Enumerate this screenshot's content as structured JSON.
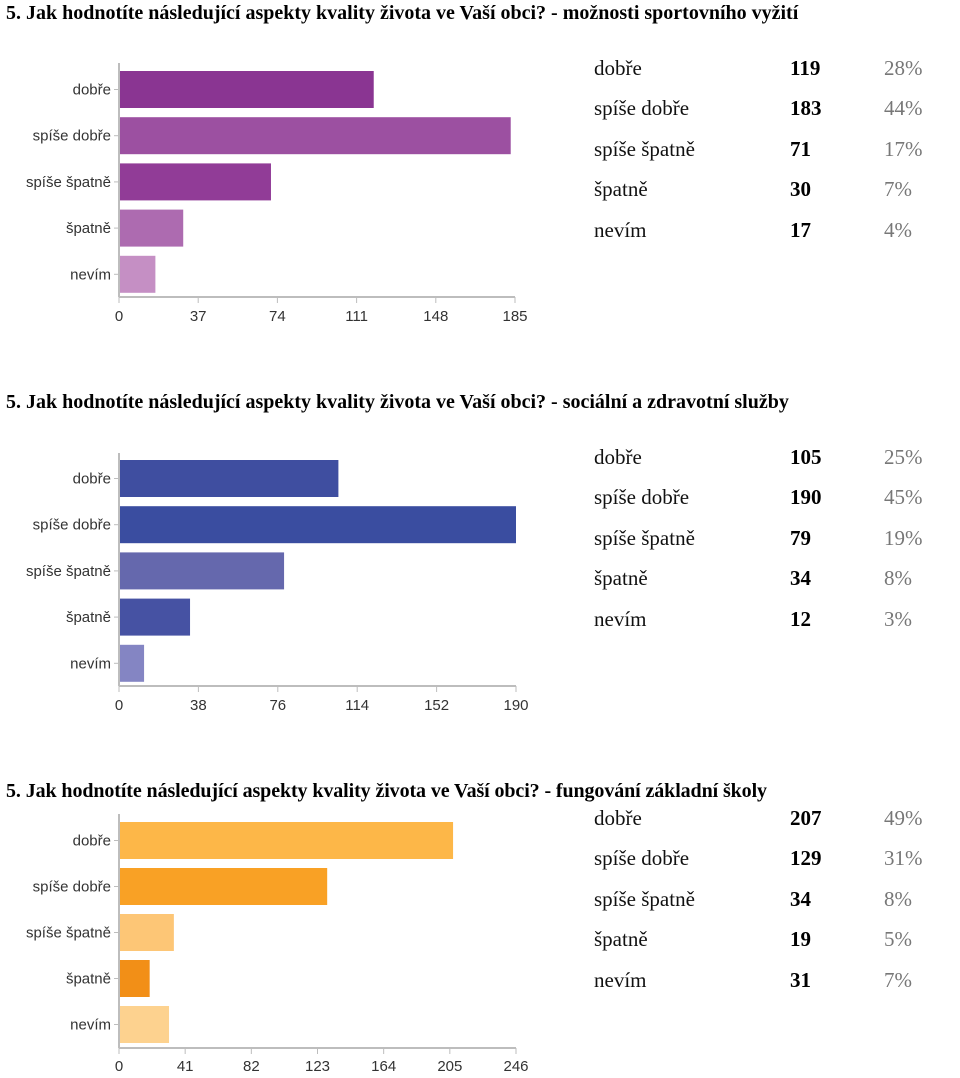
{
  "sections": [
    {
      "title": "5. Jak hodnotíte následující aspekty kvality života ve Vaší obci? - možnosti sportovního vyžití",
      "rows": [
        {
          "label": "dobře",
          "count": "119",
          "pct": "28%"
        },
        {
          "label": "spíše dobře",
          "count": "183",
          "pct": "44%"
        },
        {
          "label": "spíše špatně",
          "count": "71",
          "pct": "17%"
        },
        {
          "label": "špatně",
          "count": "30",
          "pct": "7%"
        },
        {
          "label": "nevím",
          "count": "17",
          "pct": "4%"
        }
      ]
    },
    {
      "title": "5. Jak hodnotíte následující aspekty kvality života ve Vaší obci? - sociální a zdravotní služby",
      "rows": [
        {
          "label": "dobře",
          "count": "105",
          "pct": "25%"
        },
        {
          "label": "spíše dobře",
          "count": "190",
          "pct": "45%"
        },
        {
          "label": "spíše špatně",
          "count": "79",
          "pct": "19%"
        },
        {
          "label": "špatně",
          "count": "34",
          "pct": "8%"
        },
        {
          "label": "nevím",
          "count": "12",
          "pct": "3%"
        }
      ]
    },
    {
      "title": "5. Jak hodnotíte následující aspekty kvality života ve Vaší obci? - fungování základní školy",
      "rows": [
        {
          "label": "dobře",
          "count": "207",
          "pct": "49%"
        },
        {
          "label": "spíše dobře",
          "count": "129",
          "pct": "31%"
        },
        {
          "label": "spíše špatně",
          "count": "34",
          "pct": "8%"
        },
        {
          "label": "špatně",
          "count": "19",
          "pct": "5%"
        },
        {
          "label": "nevím",
          "count": "31",
          "pct": "7%"
        }
      ]
    }
  ],
  "chart_data": [
    {
      "type": "bar",
      "orientation": "horizontal",
      "categories": [
        "dobře",
        "spíše dobře",
        "spíše špatně",
        "špatně",
        "nevím"
      ],
      "values": [
        119,
        183,
        71,
        30,
        17
      ],
      "xlim": [
        0,
        185
      ],
      "xticks": [
        "0",
        "37",
        "74",
        "111",
        "148",
        "185"
      ],
      "colors": [
        "#8a3592",
        "#9c50a1",
        "#913c97",
        "#ad6bb0",
        "#c58fc4"
      ]
    },
    {
      "type": "bar",
      "orientation": "horizontal",
      "categories": [
        "dobře",
        "spíše dobře",
        "spíše špatně",
        "špatně",
        "nevím"
      ],
      "values": [
        105,
        190,
        79,
        34,
        12
      ],
      "xlim": [
        0,
        190
      ],
      "xticks": [
        "0",
        "38",
        "76",
        "114",
        "152",
        "190"
      ],
      "colors": [
        "#3f4ea0",
        "#3a4da0",
        "#6568ad",
        "#4652a3",
        "#8485c3"
      ]
    },
    {
      "type": "bar",
      "orientation": "horizontal",
      "categories": [
        "dobře",
        "spíše dobře",
        "spíše špatně",
        "špatně",
        "nevím"
      ],
      "values": [
        207,
        129,
        34,
        19,
        31
      ],
      "xlim": [
        0,
        246
      ],
      "xticks": [
        "0",
        "41",
        "82",
        "123",
        "164",
        "205",
        "246"
      ],
      "colors": [
        "#fdb748",
        "#f9a125",
        "#fdc676",
        "#f28f17",
        "#fdd28f"
      ]
    }
  ]
}
